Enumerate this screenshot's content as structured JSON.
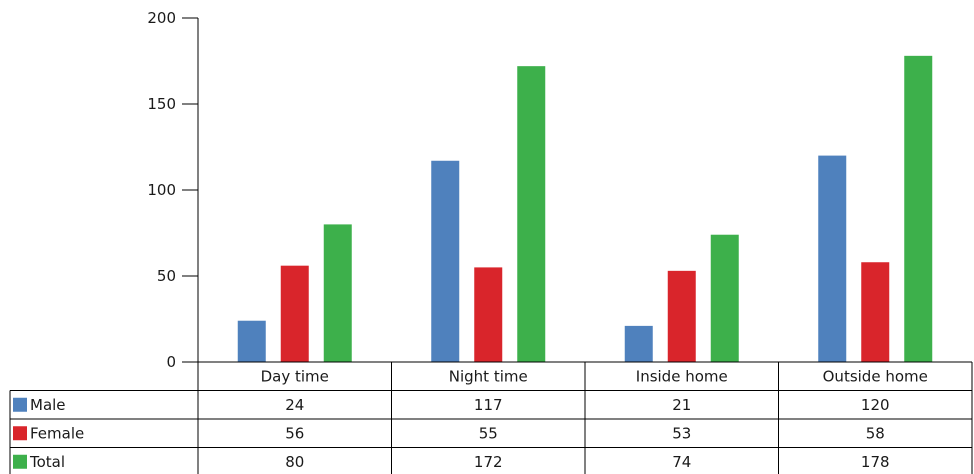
{
  "chart_data": {
    "type": "bar",
    "categories": [
      "Day time",
      "Night time",
      "Inside home",
      "Outside home"
    ],
    "series": [
      {
        "name": "Male",
        "color": "#4f81bd",
        "values": [
          24,
          117,
          21,
          120
        ]
      },
      {
        "name": "Female",
        "color": "#d9252b",
        "values": [
          56,
          55,
          53,
          58
        ]
      },
      {
        "name": "Total",
        "color": "#3db04b",
        "values": [
          80,
          172,
          74,
          178
        ]
      }
    ],
    "y_ticks": [
      "0",
      "50",
      "100",
      "150",
      "200"
    ],
    "ylim": [
      0,
      200
    ],
    "grid": false,
    "legend": "data-table-below",
    "table": {
      "rows": [
        {
          "label": "Male",
          "cells": [
            "24",
            "117",
            "21",
            "120"
          ]
        },
        {
          "label": "Female",
          "cells": [
            "56",
            "55",
            "53",
            "58"
          ]
        },
        {
          "label": "Total",
          "cells": [
            "80",
            "172",
            "74",
            "178"
          ]
        }
      ]
    }
  }
}
